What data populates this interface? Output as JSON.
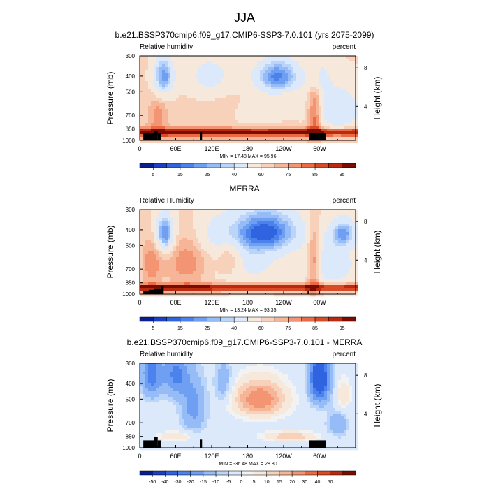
{
  "figure": {
    "title": "JJA"
  },
  "colors": {
    "main": [
      "#0a1f8f",
      "#1c3fc4",
      "#2f63e0",
      "#4c82ec",
      "#6f9ff2",
      "#95bcf6",
      "#bad5f9",
      "#dce9fb",
      "#f7e8dc",
      "#f8d1bb",
      "#f6b596",
      "#f39472",
      "#ea6a46",
      "#d94a26",
      "#b92a10",
      "#7a0d00"
    ],
    "diff": [
      "#0a1f8f",
      "#1c3fc4",
      "#2f63e0",
      "#4c82ec",
      "#6f9ff2",
      "#95bcf6",
      "#bad5f9",
      "#dce9fb",
      "#f2f2f2",
      "#f7e8dc",
      "#f8d1bb",
      "#f6b596",
      "#f39472",
      "#ea6a46",
      "#d94a26",
      "#b92a10",
      "#7a0d00"
    ],
    "terrain": "#000000"
  },
  "chart_data": [
    {
      "type": "heatmap",
      "title": "b.e21.BSSP370cmip6.f09_g17.CMIP6-SSP3-7.0.101 (yrs 2075-2099)",
      "left_label": "Relative humidity",
      "right_label": "percent",
      "ylabel": "Pressure (mb)",
      "y2label": "Height (km)",
      "x_ticks": [
        "0",
        "60E",
        "120E",
        "180",
        "120W",
        "60W"
      ],
      "x_tick_lon": [
        0,
        60,
        120,
        180,
        240,
        300
      ],
      "xlim": [
        0,
        360
      ],
      "y_ticks": [
        "300",
        "400",
        "500",
        "700",
        "850",
        "1000"
      ],
      "y_tick_p": [
        300,
        400,
        500,
        700,
        850,
        1000
      ],
      "ylim": [
        300,
        1000
      ],
      "y2_ticks": [
        "8",
        "4"
      ],
      "y2_tick_p": [
        356,
        616
      ],
      "stats": "MIN = 17.48  MAX = 95.96",
      "colorbar_labels": [
        "5",
        "15",
        "25",
        "40",
        "60",
        "75",
        "85",
        "95"
      ],
      "colorbar_label_box": [
        1,
        3,
        5,
        7,
        9,
        11,
        13,
        15
      ],
      "palette": "main",
      "base": 62,
      "blobs": [
        {
          "lon": 230,
          "p": 400,
          "sl": 28,
          "sp": 70,
          "a": -38
        },
        {
          "lon": 40,
          "p": 400,
          "sl": 12,
          "sp": 80,
          "a": -35
        },
        {
          "lon": 120,
          "p": 400,
          "sl": 30,
          "sp": 90,
          "a": -18
        },
        {
          "lon": 180,
          "p": 620,
          "sl": 40,
          "sp": 140,
          "a": -12
        },
        {
          "lon": 330,
          "p": 650,
          "sl": 30,
          "sp": 160,
          "a": -22
        },
        {
          "lon": 300,
          "p": 400,
          "sl": 12,
          "sp": 70,
          "a": -14
        },
        {
          "lon": 160,
          "p": 560,
          "sl": 35,
          "sp": 160,
          "a": 10
        },
        {
          "lon": 30,
          "p": 720,
          "sl": 10,
          "sp": 120,
          "a": 12
        },
        {
          "lon": 292,
          "p": 700,
          "sl": 8,
          "sp": 220,
          "a": 22
        }
      ],
      "low_level": {
        "peak": 94,
        "p": 890,
        "width": 55
      },
      "terrain": [
        {
          "lon0": 6,
          "lon1": 24,
          "p": 900
        },
        {
          "lon0": 24,
          "lon1": 30,
          "p": 870
        },
        {
          "lon0": 30,
          "lon1": 36,
          "p": 900
        },
        {
          "lon0": 101,
          "lon1": 104,
          "p": 890
        },
        {
          "lon0": 283,
          "lon1": 310,
          "p": 900
        }
      ]
    },
    {
      "type": "heatmap",
      "title": "MERRA",
      "left_label": "Relative Humidity",
      "right_label": "percent",
      "ylabel": "Pressure (mb)",
      "y2label": "Height (km)",
      "x_ticks": [
        "0",
        "60E",
        "120E",
        "180",
        "120W",
        "60W"
      ],
      "x_tick_lon": [
        0,
        60,
        120,
        180,
        240,
        300
      ],
      "xlim": [
        0,
        360
      ],
      "y_ticks": [
        "300",
        "400",
        "500",
        "700",
        "850",
        "1000"
      ],
      "y_tick_p": [
        300,
        400,
        500,
        700,
        850,
        1000
      ],
      "ylim": [
        300,
        1000
      ],
      "y2_ticks": [
        "8",
        "4"
      ],
      "y2_tick_p": [
        356,
        616
      ],
      "stats": "MIN = 13.24  MAX = 93.35",
      "colorbar_labels": [
        "5",
        "15",
        "25",
        "40",
        "60",
        "75",
        "85",
        "95"
      ],
      "colorbar_label_box": [
        1,
        3,
        5,
        7,
        9,
        11,
        13,
        15
      ],
      "palette": "main",
      "base": 60,
      "blobs": [
        {
          "lon": 210,
          "p": 410,
          "sl": 40,
          "sp": 90,
          "a": -42
        },
        {
          "lon": 42,
          "p": 420,
          "sl": 10,
          "sp": 80,
          "a": -38
        },
        {
          "lon": 340,
          "p": 420,
          "sl": 15,
          "sp": 60,
          "a": -30
        },
        {
          "lon": 130,
          "p": 420,
          "sl": 25,
          "sp": 90,
          "a": -12
        },
        {
          "lon": 180,
          "p": 640,
          "sl": 40,
          "sp": 140,
          "a": -14
        },
        {
          "lon": 320,
          "p": 660,
          "sl": 30,
          "sp": 150,
          "a": -18
        },
        {
          "lon": 80,
          "p": 640,
          "sl": 25,
          "sp": 160,
          "a": 14
        },
        {
          "lon": 150,
          "p": 600,
          "sl": 15,
          "sp": 120,
          "a": 16
        },
        {
          "lon": 20,
          "p": 650,
          "sl": 12,
          "sp": 150,
          "a": 14
        },
        {
          "lon": 290,
          "p": 640,
          "sl": 8,
          "sp": 230,
          "a": 22
        }
      ],
      "low_level": {
        "peak": 92,
        "p": 910,
        "width": 45
      },
      "terrain": [
        {
          "lon0": 6,
          "lon1": 16,
          "p": 960
        },
        {
          "lon0": 16,
          "lon1": 24,
          "p": 940
        },
        {
          "lon0": 24,
          "lon1": 36,
          "p": 920
        },
        {
          "lon0": 36,
          "lon1": 40,
          "p": 890
        },
        {
          "lon0": 280,
          "lon1": 283,
          "p": 950
        }
      ]
    },
    {
      "type": "heatmap",
      "title": "b.e21.BSSP370cmip6.f09_g17.CMIP6-SSP3-7.0.101 - MERRA",
      "left_label": "Relative humidity",
      "right_label": "percent",
      "ylabel": "Pressure (mb)",
      "y2label": "Height (km)",
      "x_ticks": [
        "0",
        "60E",
        "120E",
        "180",
        "120W",
        "60W"
      ],
      "x_tick_lon": [
        0,
        60,
        120,
        180,
        240,
        300
      ],
      "xlim": [
        0,
        360
      ],
      "y_ticks": [
        "300",
        "400",
        "500",
        "700",
        "850",
        "1000"
      ],
      "y_tick_p": [
        300,
        400,
        500,
        700,
        850,
        1000
      ],
      "ylim": [
        300,
        1000
      ],
      "y2_ticks": [
        "8",
        "4"
      ],
      "y2_tick_p": [
        356,
        616
      ],
      "stats": "MIN = -36.48  MAX = 28.80",
      "colorbar_labels": [
        "-50",
        "-40",
        "-30",
        "-20",
        "-15",
        "-10",
        "-5",
        "0",
        "5",
        "10",
        "15",
        "20",
        "30",
        "40",
        "50"
      ],
      "colorbar_label_box": [
        1,
        2,
        3,
        4,
        5,
        6,
        7,
        8,
        9,
        10,
        11,
        12,
        13,
        14,
        15
      ],
      "palette": "diff",
      "base": 0,
      "blobs": [
        {
          "lon": 200,
          "p": 500,
          "sl": 30,
          "sp": 90,
          "a": 26
        },
        {
          "lon": 250,
          "p": 850,
          "sl": 30,
          "sp": 40,
          "a": 14
        },
        {
          "lon": 20,
          "p": 350,
          "sl": 12,
          "sp": 90,
          "a": -18
        },
        {
          "lon": 60,
          "p": 350,
          "sl": 15,
          "sp": 90,
          "a": -16
        },
        {
          "lon": 90,
          "p": 560,
          "sl": 15,
          "sp": 160,
          "a": -12
        },
        {
          "lon": 140,
          "p": 400,
          "sl": 10,
          "sp": 90,
          "a": -10
        },
        {
          "lon": 300,
          "p": 370,
          "sl": 12,
          "sp": 100,
          "a": -30
        },
        {
          "lon": 330,
          "p": 720,
          "sl": 12,
          "sp": 90,
          "a": -10
        },
        {
          "lon": 340,
          "p": 470,
          "sl": 8,
          "sp": 70,
          "a": 10
        },
        {
          "lon": 60,
          "p": 850,
          "sl": 20,
          "sp": 40,
          "a": 10
        }
      ],
      "low_level": {
        "peak": 0,
        "p": 900,
        "width": 40
      },
      "terrain": [
        {
          "lon0": 6,
          "lon1": 24,
          "p": 900
        },
        {
          "lon0": 24,
          "lon1": 30,
          "p": 860
        },
        {
          "lon0": 30,
          "lon1": 36,
          "p": 900
        },
        {
          "lon0": 101,
          "lon1": 104,
          "p": 890
        },
        {
          "lon0": 283,
          "lon1": 310,
          "p": 900
        }
      ]
    }
  ]
}
